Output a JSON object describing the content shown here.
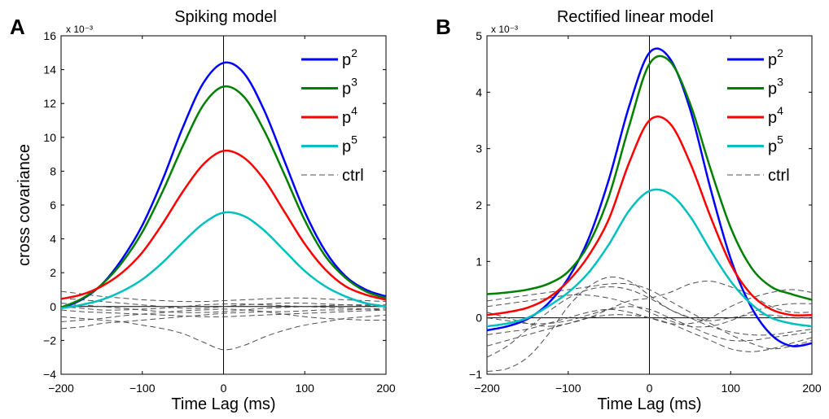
{
  "chart_data": [
    {
      "type": "line",
      "panel": "A",
      "title": "Spiking model",
      "xlabel": "Time Lag (ms)",
      "ylabel": "cross covariance",
      "y_multiplier": "x 10⁻³",
      "xlim": [
        -200,
        200
      ],
      "ylim": [
        -4,
        16
      ],
      "xticks": [
        -200,
        -100,
        0,
        100,
        200
      ],
      "xtick_labels": [
        "−200",
        "−100",
        "0",
        "100",
        "200"
      ],
      "yticks": [
        -4,
        -2,
        0,
        2,
        4,
        6,
        8,
        10,
        12,
        14,
        16
      ],
      "ytick_labels": [
        "−4",
        "−2",
        "0",
        "2",
        "4",
        "6",
        "8",
        "10",
        "12",
        "14",
        "16"
      ],
      "legend": {
        "placement": "top-right"
      },
      "x": [
        -200,
        -175,
        -150,
        -125,
        -100,
        -75,
        -50,
        -25,
        0,
        25,
        50,
        75,
        100,
        125,
        150,
        175,
        200
      ],
      "series": [
        {
          "name": "p",
          "exp": "2",
          "color": "#0000ff",
          "style": "solid",
          "values": [
            -0.1,
            0.4,
            1.3,
            2.8,
            4.8,
            7.5,
            10.6,
            13.2,
            14.4,
            13.8,
            11.6,
            8.6,
            5.6,
            3.3,
            1.8,
            1.0,
            0.6
          ]
        },
        {
          "name": "p",
          "exp": "3",
          "color": "#008000",
          "style": "solid",
          "values": [
            -0.05,
            0.45,
            1.3,
            2.6,
            4.4,
            6.8,
            9.5,
            11.9,
            13.0,
            12.4,
            10.4,
            7.8,
            5.1,
            3.0,
            1.7,
            0.9,
            0.5
          ]
        },
        {
          "name": "p",
          "exp": "4",
          "color": "#ff0000",
          "style": "solid",
          "values": [
            0.45,
            0.7,
            1.2,
            2.0,
            3.2,
            4.9,
            6.8,
            8.4,
            9.2,
            8.8,
            7.5,
            5.6,
            3.7,
            2.2,
            1.2,
            0.7,
            0.4
          ]
        },
        {
          "name": "p",
          "exp": "5",
          "color": "#00bfbf",
          "style": "solid",
          "values": [
            -0.1,
            0.1,
            0.4,
            0.9,
            1.6,
            2.6,
            3.8,
            4.9,
            5.55,
            5.35,
            4.5,
            3.3,
            2.1,
            1.2,
            0.6,
            0.2,
            0.0
          ]
        },
        {
          "name": "ctrl",
          "color": "#4d4d4d",
          "style": "dashed",
          "values": [
            0.9,
            0.75,
            0.6,
            0.5,
            0.4,
            0.35,
            0.3,
            0.3,
            0.35,
            0.4,
            0.45,
            0.5,
            0.5,
            0.45,
            0.4,
            0.35,
            0.3
          ]
        },
        {
          "name": "ctrl",
          "color": "#4d4d4d",
          "style": "dashed",
          "values": [
            -1.3,
            -1.2,
            -1.0,
            -0.9,
            -0.8,
            -0.7,
            -0.6,
            -0.5,
            -0.4,
            -0.35,
            -0.3,
            -0.3,
            -0.25,
            -0.2,
            -0.2,
            -0.15,
            -0.1
          ]
        },
        {
          "name": "ctrl",
          "color": "#4d4d4d",
          "style": "dashed",
          "values": [
            -0.6,
            -0.7,
            -0.8,
            -0.9,
            -1.1,
            -1.3,
            -1.6,
            -2.1,
            -2.55,
            -2.3,
            -1.8,
            -1.4,
            -1.1,
            -0.9,
            -0.7,
            -0.6,
            -0.5
          ]
        },
        {
          "name": "ctrl",
          "color": "#4d4d4d",
          "style": "dashed",
          "values": [
            0.5,
            0.4,
            0.3,
            0.2,
            0.1,
            0.0,
            -0.1,
            -0.1,
            0.0,
            0.1,
            0.15,
            0.2,
            0.2,
            0.15,
            0.1,
            0.05,
            0.0
          ]
        },
        {
          "name": "ctrl",
          "color": "#4d4d4d",
          "style": "dashed",
          "values": [
            -0.2,
            -0.3,
            -0.35,
            -0.4,
            -0.45,
            -0.5,
            -0.55,
            -0.6,
            -0.6,
            -0.55,
            -0.5,
            -0.45,
            -0.4,
            -0.35,
            -0.3,
            -0.25,
            -0.2
          ]
        },
        {
          "name": "ctrl",
          "color": "#4d4d4d",
          "style": "dashed",
          "values": [
            0.2,
            0.1,
            0.0,
            -0.1,
            -0.2,
            -0.3,
            -0.35,
            -0.35,
            -0.3,
            -0.2,
            -0.1,
            -0.05,
            0.0,
            0.05,
            0.1,
            0.1,
            0.1
          ]
        },
        {
          "name": "ctrl",
          "color": "#4d4d4d",
          "style": "dashed",
          "values": [
            -0.9,
            -0.8,
            -0.7,
            -0.55,
            -0.45,
            -0.35,
            -0.25,
            -0.2,
            -0.15,
            -0.2,
            -0.3,
            -0.45,
            -0.6,
            -0.7,
            -0.75,
            -0.8,
            -0.8
          ]
        },
        {
          "name": "ctrl",
          "color": "#4d4d4d",
          "style": "dashed",
          "values": [
            0.0,
            -0.1,
            -0.2,
            -0.2,
            -0.15,
            -0.1,
            0.0,
            0.1,
            0.15,
            0.15,
            0.1,
            0.05,
            0.0,
            -0.05,
            -0.1,
            -0.15,
            -0.2
          ]
        }
      ],
      "hline_y": 0,
      "vline_x": 0
    },
    {
      "type": "line",
      "panel": "B",
      "title": "Rectified linear model",
      "xlabel": "Time Lag (ms)",
      "ylabel": "",
      "y_multiplier": "x 10⁻³",
      "xlim": [
        -200,
        200
      ],
      "ylim": [
        -1,
        5
      ],
      "xticks": [
        -200,
        -100,
        0,
        100,
        200
      ],
      "xtick_labels": [
        "−200",
        "−100",
        "0",
        "100",
        "200"
      ],
      "yticks": [
        -1,
        0,
        1,
        2,
        3,
        4,
        5
      ],
      "ytick_labels": [
        "−1",
        "0",
        "1",
        "2",
        "3",
        "4",
        "5"
      ],
      "legend": {
        "placement": "top-right"
      },
      "x": [
        -200,
        -175,
        -150,
        -125,
        -100,
        -75,
        -50,
        -25,
        0,
        25,
        50,
        75,
        100,
        125,
        150,
        175,
        200
      ],
      "series": [
        {
          "name": "p",
          "exp": "2",
          "color": "#0000ff",
          "style": "solid",
          "values": [
            -0.22,
            -0.15,
            -0.02,
            0.25,
            0.7,
            1.4,
            2.45,
            3.75,
            4.7,
            4.6,
            3.7,
            2.3,
            1.05,
            0.2,
            -0.3,
            -0.5,
            -0.45
          ]
        },
        {
          "name": "p",
          "exp": "3",
          "color": "#008000",
          "style": "solid",
          "values": [
            0.42,
            0.45,
            0.5,
            0.6,
            0.82,
            1.3,
            2.15,
            3.4,
            4.5,
            4.55,
            3.8,
            2.65,
            1.6,
            0.9,
            0.55,
            0.42,
            0.32
          ]
        },
        {
          "name": "p",
          "exp": "4",
          "color": "#ff0000",
          "style": "solid",
          "values": [
            0.05,
            0.1,
            0.18,
            0.35,
            0.65,
            1.1,
            1.75,
            2.75,
            3.5,
            3.45,
            2.75,
            1.8,
            0.95,
            0.42,
            0.15,
            0.05,
            0.05
          ]
        },
        {
          "name": "p",
          "exp": "5",
          "color": "#00bfbf",
          "style": "solid",
          "values": [
            -0.15,
            -0.1,
            0.0,
            0.2,
            0.45,
            0.8,
            1.3,
            1.9,
            2.25,
            2.2,
            1.8,
            1.2,
            0.65,
            0.25,
            0.0,
            -0.1,
            -0.15
          ]
        },
        {
          "name": "ctrl",
          "color": "#4d4d4d",
          "style": "dashed",
          "values": [
            -0.95,
            -0.9,
            -0.7,
            -0.3,
            0.2,
            0.55,
            0.72,
            0.65,
            0.4,
            0.15,
            0.0,
            -0.05,
            0.0,
            0.05,
            0.05,
            0.0,
            0.0
          ]
        },
        {
          "name": "ctrl",
          "color": "#4d4d4d",
          "style": "dashed",
          "values": [
            -0.7,
            -0.5,
            -0.2,
            0.1,
            0.35,
            0.5,
            0.55,
            0.5,
            0.35,
            0.15,
            0.0,
            -0.15,
            -0.25,
            -0.3,
            -0.3,
            -0.25,
            -0.2
          ]
        },
        {
          "name": "ctrl",
          "color": "#4d4d4d",
          "style": "dashed",
          "values": [
            0.3,
            0.35,
            0.4,
            0.45,
            0.5,
            0.55,
            0.6,
            0.6,
            0.5,
            0.3,
            0.1,
            -0.1,
            -0.3,
            -0.45,
            -0.55,
            -0.5,
            -0.4
          ]
        },
        {
          "name": "ctrl",
          "color": "#4d4d4d",
          "style": "dashed",
          "values": [
            0.1,
            0.0,
            -0.1,
            -0.15,
            -0.1,
            0.0,
            0.15,
            0.3,
            0.35,
            0.45,
            0.6,
            0.65,
            0.55,
            0.4,
            0.2,
            0.1,
            0.1
          ]
        },
        {
          "name": "ctrl",
          "color": "#4d4d4d",
          "style": "dashed",
          "values": [
            -0.5,
            -0.4,
            -0.3,
            -0.2,
            -0.1,
            0.0,
            0.05,
            0.05,
            0.0,
            -0.1,
            -0.25,
            -0.4,
            -0.55,
            -0.6,
            -0.55,
            -0.45,
            -0.35
          ]
        },
        {
          "name": "ctrl",
          "color": "#4d4d4d",
          "style": "dashed",
          "values": [
            0.2,
            0.25,
            0.3,
            0.35,
            0.4,
            0.4,
            0.35,
            0.25,
            0.1,
            -0.05,
            -0.15,
            -0.15,
            -0.05,
            0.1,
            0.2,
            0.25,
            0.25
          ]
        },
        {
          "name": "ctrl",
          "color": "#4d4d4d",
          "style": "dashed",
          "values": [
            -0.3,
            -0.25,
            -0.2,
            -0.1,
            0.0,
            0.1,
            0.15,
            0.1,
            0.0,
            -0.1,
            -0.1,
            0.0,
            0.2,
            0.35,
            0.45,
            0.5,
            0.45
          ]
        },
        {
          "name": "ctrl",
          "color": "#4d4d4d",
          "style": "dashed",
          "values": [
            0.0,
            -0.05,
            -0.1,
            -0.1,
            -0.05,
            0.05,
            0.15,
            0.2,
            0.15,
            0.0,
            -0.15,
            -0.3,
            -0.4,
            -0.4,
            -0.35,
            -0.3,
            -0.25
          ]
        }
      ],
      "hline_y": 0,
      "vline_x": 0
    }
  ]
}
